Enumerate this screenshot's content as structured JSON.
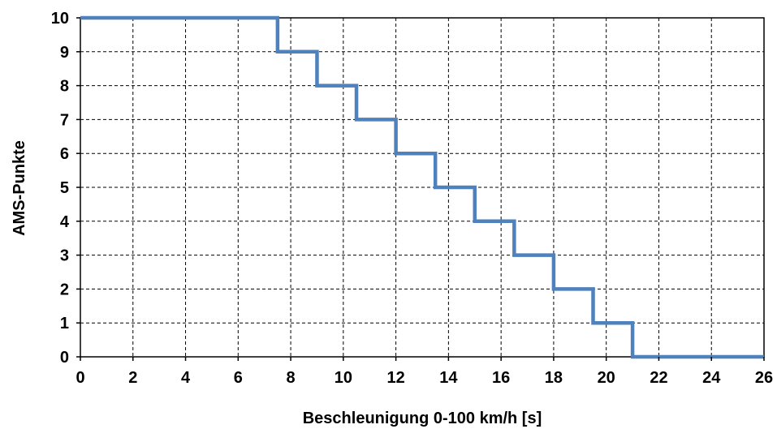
{
  "chart_data": {
    "type": "line",
    "step": true,
    "title": "",
    "xlabel": "Beschleunigung 0-100  km/h [s]",
    "ylabel": "AMS-Punkte",
    "xlim": [
      0,
      26
    ],
    "ylim": [
      0,
      10
    ],
    "x_ticks": [
      "0",
      "2",
      "4",
      "6",
      "8",
      "10",
      "12",
      "14",
      "16",
      "18",
      "20",
      "22",
      "24",
      "26"
    ],
    "y_ticks": [
      "0",
      "1",
      "2",
      "3",
      "4",
      "5",
      "6",
      "7",
      "8",
      "9",
      "10"
    ],
    "grid": true,
    "grid_style": "dashed",
    "series": [
      {
        "color": "#4f81bd",
        "x": [
          0,
          7.5,
          7.5,
          9,
          9,
          10.5,
          10.5,
          12,
          12,
          13.5,
          13.5,
          15,
          15,
          16.5,
          16.5,
          18,
          18,
          19.5,
          19.5,
          21,
          21,
          26
        ],
        "y": [
          10,
          10,
          9,
          9,
          8,
          8,
          7,
          7,
          6,
          6,
          5,
          5,
          4,
          4,
          3,
          3,
          2,
          2,
          1,
          1,
          0,
          0
        ]
      }
    ]
  }
}
